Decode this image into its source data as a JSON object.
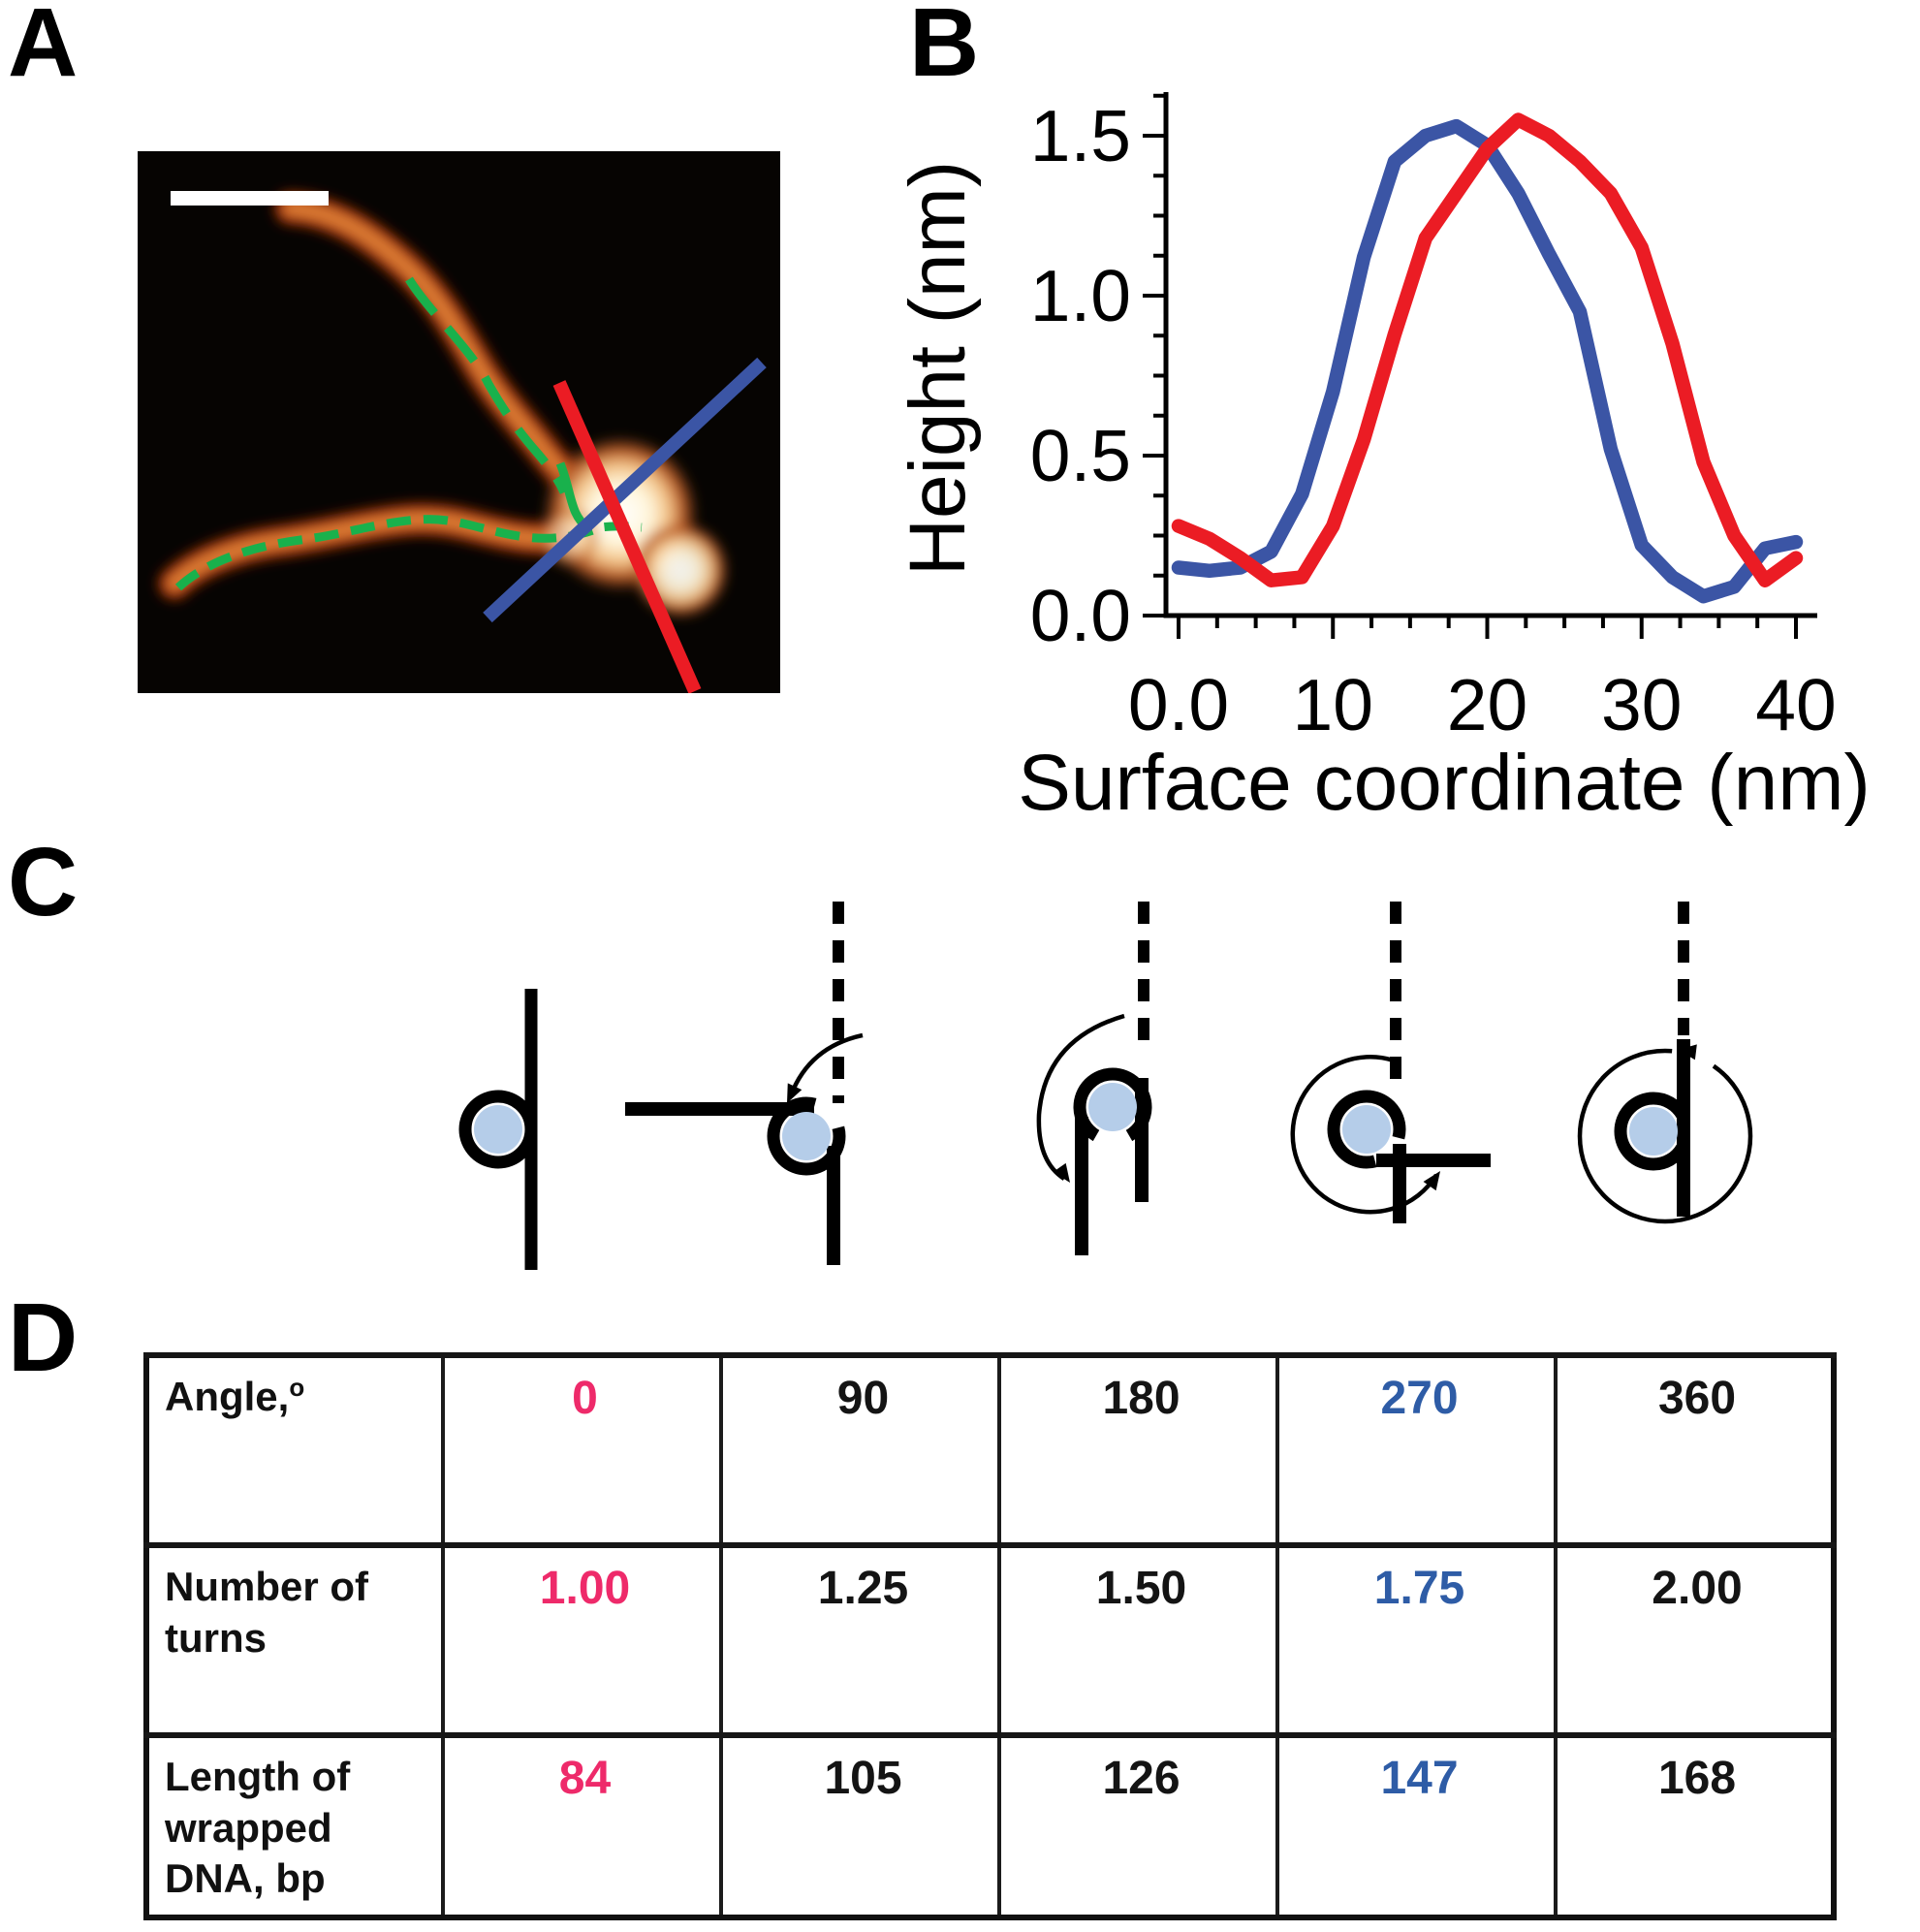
{
  "panels": {
    "a": "A",
    "b": "B",
    "c": "C",
    "d": "D"
  },
  "colors": {
    "chart_blue": "#3B55A5",
    "chart_red": "#EB1C24",
    "trace_green": "#19B14C",
    "table_pink": "#EE2A6A",
    "table_blue": "#2E5CA6",
    "nucleosome_fill": "#B5CDE9",
    "afm_background": "#060402"
  },
  "chart_data": {
    "type": "line",
    "title": "",
    "xlabel": "Surface coordinate (nm)",
    "ylabel": "Height (nm)",
    "xlim": [
      0,
      40
    ],
    "ylim": [
      0,
      1.75
    ],
    "grid": false,
    "legend": "none",
    "x_tick_labels": [
      "0.0",
      "10",
      "20",
      "30",
      "40"
    ],
    "x_tick_values": [
      0,
      10,
      20,
      30,
      40
    ],
    "y_tick_labels": [
      "1.5",
      "1.0",
      "0.5",
      "0.0"
    ],
    "y_tick_values": [
      1.5,
      1.0,
      0.5,
      0.0
    ],
    "x": [
      0,
      2,
      4,
      6,
      8,
      10,
      12,
      14,
      16,
      18,
      20,
      22,
      24,
      26,
      28,
      30,
      32,
      34,
      36,
      38,
      40
    ],
    "series": [
      {
        "name": "blue cross-section profile",
        "color": "#3B55A5",
        "values": [
          0.15,
          0.14,
          0.15,
          0.2,
          0.38,
          0.7,
          1.12,
          1.42,
          1.5,
          1.53,
          1.47,
          1.32,
          1.13,
          0.95,
          0.52,
          0.22,
          0.12,
          0.06,
          0.09,
          0.21,
          0.23
        ]
      },
      {
        "name": "red cross-section profile",
        "color": "#EB1C24",
        "values": [
          0.28,
          0.24,
          0.18,
          0.11,
          0.12,
          0.28,
          0.55,
          0.88,
          1.18,
          1.32,
          1.46,
          1.55,
          1.5,
          1.42,
          1.32,
          1.15,
          0.85,
          0.48,
          0.25,
          0.11,
          0.18
        ]
      }
    ]
  },
  "table": {
    "rows": [
      {
        "label": "Angle,",
        "label_sup": "o",
        "values": [
          "0",
          "90",
          "180",
          "270",
          "360"
        ]
      },
      {
        "label": "Number of turns",
        "values": [
          "1.00",
          "1.25",
          "1.50",
          "1.75",
          "2.00"
        ]
      },
      {
        "label": "Length of wrapped DNA, bp",
        "values": [
          "84",
          "105",
          "126",
          "147",
          "168"
        ]
      }
    ]
  }
}
